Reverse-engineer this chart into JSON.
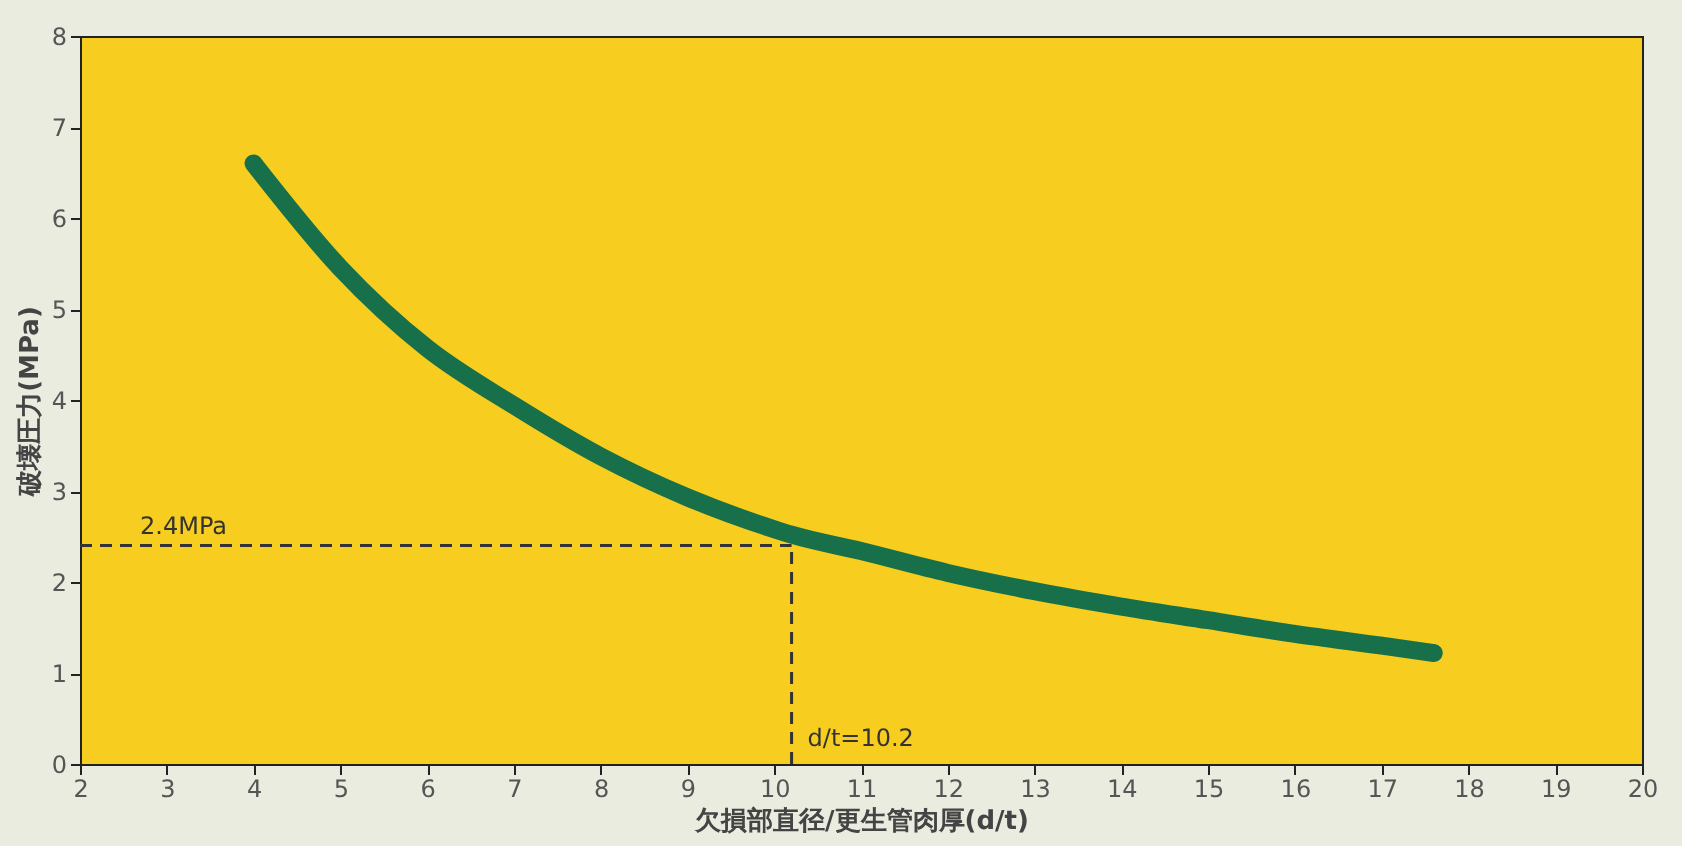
{
  "chart_data": {
    "type": "line",
    "xlabel": "欠損部直径/更生管肉厚(d/t)",
    "ylabel": "破壊圧力(MPa)",
    "x": [
      4,
      5,
      6,
      7,
      8,
      9,
      10,
      10.2,
      11,
      12,
      13,
      14,
      15,
      16,
      17,
      17.6
    ],
    "series": [
      {
        "color": "#17704a",
        "values": [
          6.6,
          5.45,
          4.57,
          3.94,
          3.38,
          2.93,
          2.58,
          2.52,
          2.34,
          2.1,
          1.9,
          1.73,
          1.58,
          1.43,
          1.3,
          1.22
        ]
      }
    ],
    "xlim": [
      2,
      20
    ],
    "xticks": [
      2,
      3,
      4,
      5,
      6,
      7,
      8,
      9,
      10,
      11,
      12,
      13,
      14,
      15,
      16,
      17,
      18,
      19,
      20
    ],
    "ylim": [
      0,
      8
    ],
    "yticks": [
      0,
      1,
      2,
      3,
      4,
      5,
      6,
      7,
      8
    ],
    "ref_lines": [
      {
        "axis": "y",
        "value": 2.4,
        "label": "2.4MPa",
        "line_style": "dashed"
      },
      {
        "axis": "x",
        "value": 10.2,
        "label": "d/t=10.2",
        "line_style": "dashed"
      }
    ],
    "grid": false,
    "line_style": "solid"
  }
}
